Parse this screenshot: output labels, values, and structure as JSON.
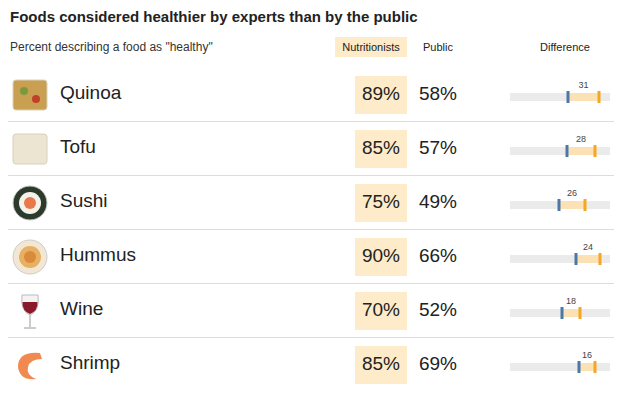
{
  "chart_data": {
    "type": "dot_range",
    "title": "Foods considered healthier by experts than by the public",
    "subtitle": "Percent describing a food as \"healthy\"",
    "categories": [
      "Quinoa",
      "Tofu",
      "Sushi",
      "Hummus",
      "Wine",
      "Shrimp"
    ],
    "series": [
      {
        "name": "Nutritionists",
        "color": "#f5a623",
        "values": [
          89,
          85,
          75,
          90,
          70,
          85
        ],
        "value_labels": [
          "89%",
          "85%",
          "75%",
          "90%",
          "70%",
          "85%"
        ]
      },
      {
        "name": "Public",
        "color": "#4a78a8",
        "values": [
          58,
          57,
          49,
          66,
          52,
          69
        ],
        "value_labels": [
          "58%",
          "57%",
          "49%",
          "66%",
          "52%",
          "69%"
        ]
      }
    ],
    "difference_title": "Difference",
    "differences": [
      31,
      28,
      26,
      24,
      18,
      16
    ],
    "xlim": [
      0,
      100
    ],
    "tick_labels": false,
    "orientation": "horizontal",
    "data_labels": true
  }
}
